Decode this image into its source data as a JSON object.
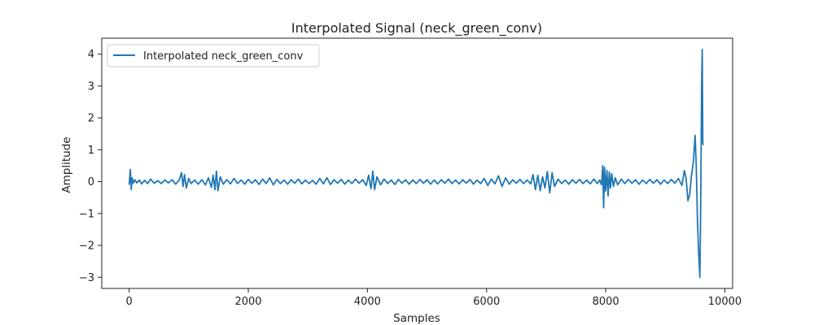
{
  "chart_data": {
    "type": "line",
    "title": "Interpolated Signal (neck_green_conv)",
    "xlabel": "Samples",
    "ylabel": "Amplitude",
    "xlim": [
      -460,
      10130
    ],
    "ylim": [
      -3.35,
      4.5
    ],
    "xticks": [
      0,
      2000,
      4000,
      6000,
      8000,
      10000
    ],
    "yticks": [
      -3,
      -2,
      -1,
      0,
      1,
      2,
      3,
      4
    ],
    "grid": false,
    "legend_position": "top-left",
    "series": [
      {
        "name": "Interpolated neck_green_conv",
        "color": "#1f77b4",
        "x": [
          0,
          20,
          35,
          50,
          70,
          95,
          130,
          170,
          210,
          260,
          310,
          360,
          420,
          480,
          540,
          600,
          660,
          720,
          780,
          840,
          880,
          905,
          930,
          960,
          1000,
          1040,
          1100,
          1160,
          1220,
          1280,
          1330,
          1380,
          1410,
          1440,
          1465,
          1490,
          1530,
          1580,
          1640,
          1700,
          1760,
          1820,
          1880,
          1940,
          2000,
          2060,
          2120,
          2180,
          2240,
          2300,
          2360,
          2420,
          2480,
          2540,
          2600,
          2660,
          2720,
          2780,
          2840,
          2900,
          2960,
          3020,
          3080,
          3140,
          3200,
          3260,
          3320,
          3380,
          3440,
          3500,
          3560,
          3620,
          3680,
          3740,
          3800,
          3860,
          3920,
          3980,
          4020,
          4060,
          4090,
          4120,
          4160,
          4220,
          4280,
          4340,
          4400,
          4460,
          4520,
          4580,
          4640,
          4700,
          4760,
          4820,
          4880,
          4940,
          5000,
          5060,
          5120,
          5180,
          5240,
          5300,
          5360,
          5420,
          5480,
          5540,
          5600,
          5660,
          5720,
          5780,
          5840,
          5900,
          5960,
          6020,
          6080,
          6140,
          6200,
          6260,
          6320,
          6380,
          6440,
          6500,
          6560,
          6620,
          6680,
          6740,
          6780,
          6820,
          6860,
          6900,
          6940,
          6980,
          7020,
          7060,
          7100,
          7140,
          7200,
          7260,
          7320,
          7380,
          7440,
          7500,
          7560,
          7620,
          7680,
          7740,
          7800,
          7860,
          7900,
          7930,
          7950,
          7965,
          7980,
          8000,
          8020,
          8040,
          8060,
          8080,
          8100,
          8130,
          8160,
          8200,
          8260,
          8320,
          8380,
          8440,
          8500,
          8560,
          8620,
          8680,
          8740,
          8800,
          8860,
          8920,
          8980,
          9040,
          9100,
          9160,
          9220,
          9280,
          9320,
          9350,
          9380,
          9410,
          9440,
          9470,
          9500,
          9520,
          9540,
          9555,
          9570,
          9580,
          9590,
          9600,
          9610,
          9620,
          9630,
          9640
        ],
        "y": [
          -0.1,
          0.38,
          -0.25,
          0.12,
          -0.05,
          0.06,
          -0.04,
          0.05,
          -0.07,
          0.04,
          -0.06,
          0.08,
          -0.05,
          0.03,
          -0.06,
          0.05,
          -0.04,
          0.06,
          -0.08,
          0.05,
          0.28,
          -0.15,
          0.22,
          -0.2,
          0.1,
          -0.06,
          0.05,
          -0.08,
          0.06,
          -0.1,
          0.12,
          -0.18,
          0.2,
          -0.25,
          0.33,
          -0.28,
          0.15,
          -0.08,
          0.06,
          -0.07,
          0.1,
          -0.06,
          0.05,
          -0.08,
          0.07,
          -0.05,
          0.06,
          -0.09,
          0.08,
          -0.06,
          0.12,
          -0.1,
          0.07,
          -0.06,
          0.05,
          -0.08,
          0.06,
          -0.05,
          0.08,
          -0.07,
          0.05,
          -0.06,
          0.04,
          -0.08,
          0.1,
          -0.07,
          0.12,
          -0.09,
          0.06,
          -0.05,
          0.07,
          -0.08,
          0.05,
          -0.06,
          0.08,
          -0.05,
          0.06,
          -0.12,
          0.2,
          -0.22,
          0.33,
          -0.25,
          0.15,
          -0.1,
          0.08,
          -0.06,
          0.05,
          -0.09,
          0.07,
          -0.05,
          0.06,
          -0.08,
          0.05,
          -0.06,
          0.07,
          -0.05,
          0.06,
          -0.08,
          0.05,
          -0.07,
          0.06,
          -0.05,
          0.08,
          -0.06,
          0.05,
          -0.07,
          0.06,
          -0.05,
          0.07,
          -0.08,
          0.05,
          -0.06,
          0.1,
          -0.12,
          0.08,
          -0.07,
          0.18,
          -0.15,
          0.12,
          -0.08,
          0.06,
          -0.05,
          0.07,
          -0.06,
          0.05,
          -0.07,
          0.22,
          -0.25,
          0.2,
          -0.28,
          0.15,
          -0.2,
          0.32,
          -0.35,
          0.28,
          -0.15,
          0.08,
          -0.06,
          0.05,
          -0.08,
          0.06,
          -0.05,
          0.07,
          -0.06,
          0.05,
          -0.07,
          0.08,
          -0.06,
          0.05,
          -0.1,
          0.5,
          -0.82,
          0.45,
          -0.3,
          0.35,
          -0.45,
          0.3,
          -0.2,
          0.25,
          -0.15,
          0.12,
          -0.1,
          0.08,
          -0.06,
          0.07,
          -0.05,
          0.06,
          -0.08,
          0.05,
          -0.06,
          0.07,
          -0.05,
          0.06,
          -0.08,
          0.05,
          -0.06,
          0.07,
          -0.05,
          0.1,
          -0.12,
          0.35,
          0.1,
          -0.6,
          -0.4,
          0.2,
          0.6,
          1.45,
          0.5,
          -1.2,
          -2.0,
          -2.6,
          -3.0,
          -1.5,
          0.5,
          3.0,
          4.15,
          1.2,
          1.15
        ]
      }
    ]
  }
}
